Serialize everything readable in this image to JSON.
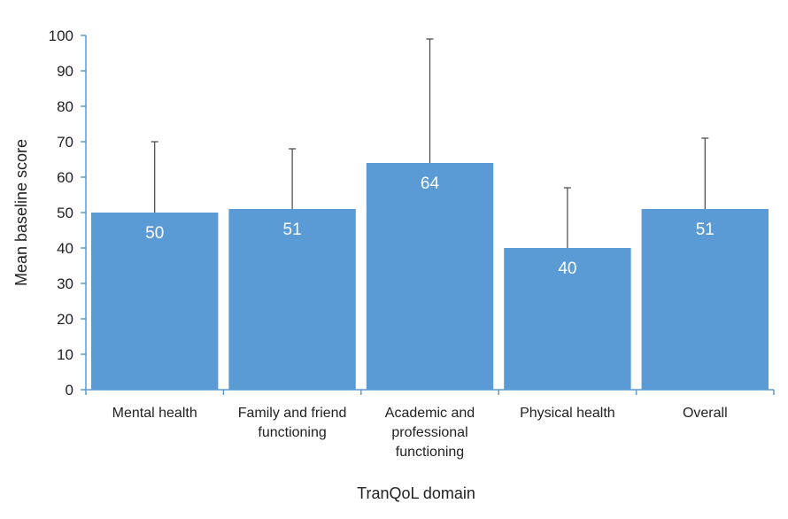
{
  "chart_data": {
    "type": "bar",
    "categories": [
      [
        "Mental health"
      ],
      [
        "Family and friend",
        "functioning"
      ],
      [
        "Academic and",
        "professional",
        "functioning"
      ],
      [
        "Physical health"
      ],
      [
        "Overall"
      ]
    ],
    "values": [
      50,
      51,
      64,
      40,
      51
    ],
    "error_upper": [
      70,
      68,
      99,
      57,
      71
    ],
    "data_labels": [
      "50",
      "51",
      "64",
      "40",
      "51"
    ],
    "xlabel": "TranQoL domain",
    "ylabel": "Mean baseline score",
    "ylim": [
      0,
      100
    ],
    "yticks": [
      0,
      10,
      20,
      30,
      40,
      50,
      60,
      70,
      80,
      90,
      100
    ],
    "grid": false,
    "legend": "none",
    "colors": {
      "bar": "#5b9bd5",
      "axis": "#5b9bd5",
      "error": "#444444"
    }
  }
}
